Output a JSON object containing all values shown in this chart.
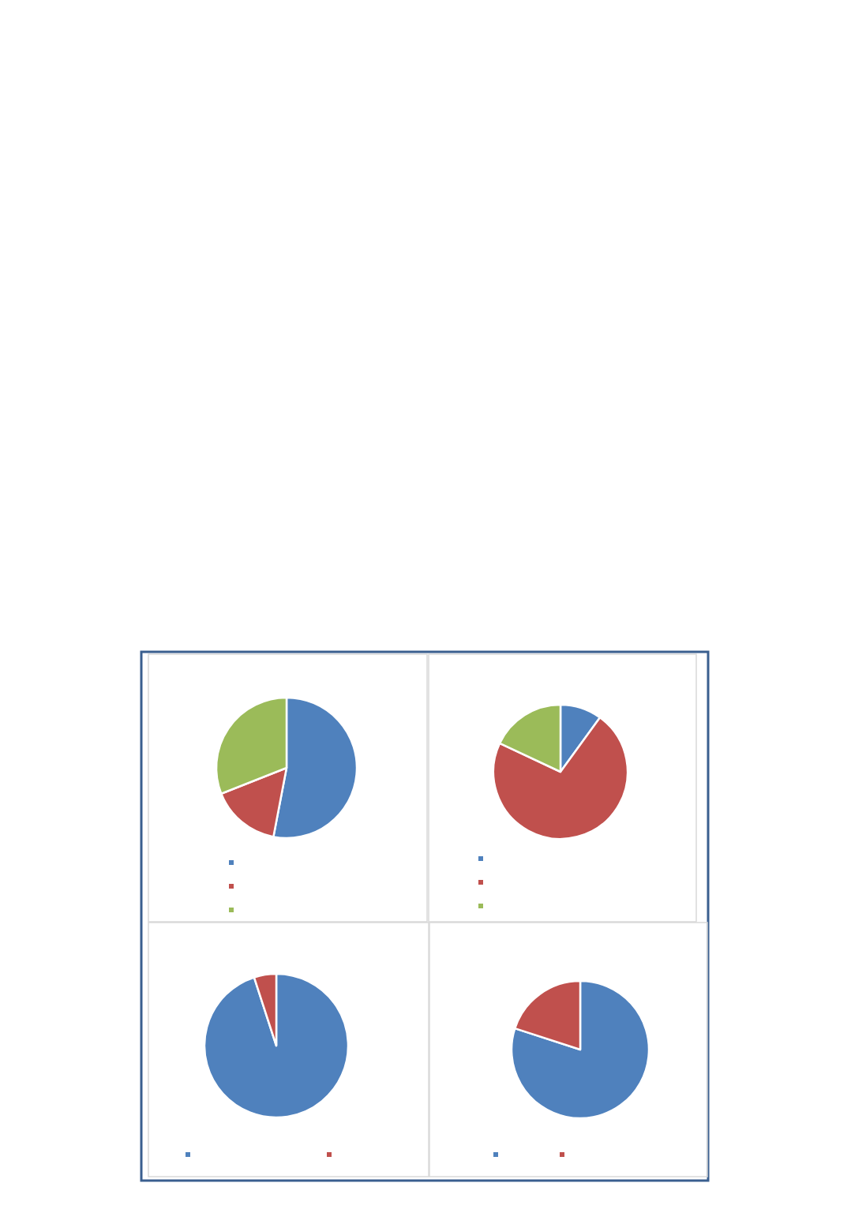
{
  "chart_data": [
    {
      "type": "pie",
      "categories": [
        null,
        null,
        null
      ],
      "values": [
        53,
        16,
        31
      ],
      "colors": [
        "#4f81bd",
        "#c0504d",
        "#9bbb59"
      ]
    },
    {
      "type": "pie",
      "categories": [
        null,
        null,
        null
      ],
      "values": [
        10,
        72,
        18
      ],
      "colors": [
        "#4f81bd",
        "#c0504d",
        "#9bbb59"
      ]
    },
    {
      "type": "pie",
      "categories": [
        null,
        null
      ],
      "values": [
        95,
        5
      ],
      "colors": [
        "#4f81bd",
        "#c0504d"
      ]
    },
    {
      "type": "pie",
      "categories": [
        null,
        null
      ],
      "values": [
        80,
        20
      ],
      "colors": [
        "#4f81bd",
        "#c0504d"
      ]
    }
  ]
}
